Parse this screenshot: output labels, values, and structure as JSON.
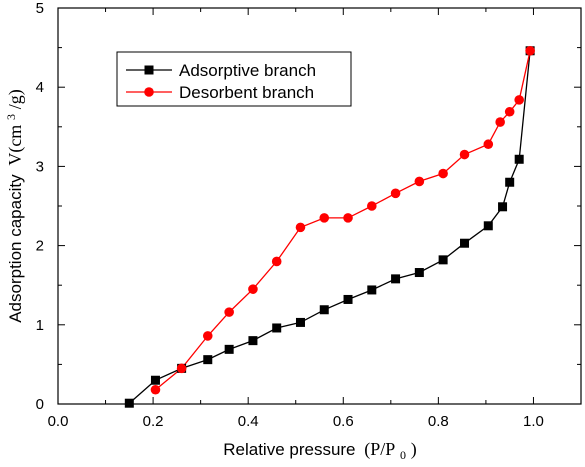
{
  "chart_data": {
    "type": "line",
    "title": "",
    "xlabel_main": "Relative pressure",
    "xlabel_expr": "(P/P",
    "xlabel_sub": "0",
    "xlabel_close": ")",
    "ylabel_main": "Adsorption capacity",
    "ylabel_unit_a": "V(cm",
    "ylabel_sup": "3",
    "ylabel_unit_b": "/g)",
    "xlim": [
      0.0,
      1.1
    ],
    "ylim": [
      0,
      5
    ],
    "xticks": [
      "0.0",
      "0.2",
      "0.4",
      "0.6",
      "0.8",
      "1.0"
    ],
    "yticks": [
      "0",
      "1",
      "2",
      "3",
      "4",
      "5"
    ],
    "legend_position": "top-left",
    "grid": false,
    "series": [
      {
        "name": "Adsorptive branch",
        "color": "#000000",
        "marker": "square",
        "x": [
          0.15,
          0.205,
          0.26,
          0.315,
          0.36,
          0.41,
          0.46,
          0.51,
          0.56,
          0.61,
          0.66,
          0.71,
          0.76,
          0.81,
          0.855,
          0.905,
          0.935,
          0.95,
          0.97,
          0.993
        ],
        "y": [
          0.01,
          0.3,
          0.45,
          0.56,
          0.69,
          0.8,
          0.96,
          1.03,
          1.19,
          1.32,
          1.44,
          1.58,
          1.66,
          1.82,
          2.03,
          2.25,
          2.49,
          2.8,
          3.09,
          4.46
        ]
      },
      {
        "name": "Desorbent branch",
        "color": "#ff0000",
        "marker": "circle",
        "x": [
          0.205,
          0.26,
          0.315,
          0.36,
          0.41,
          0.46,
          0.51,
          0.56,
          0.61,
          0.66,
          0.71,
          0.76,
          0.81,
          0.855,
          0.905,
          0.93,
          0.95,
          0.97,
          0.993
        ],
        "y": [
          0.18,
          0.45,
          0.86,
          1.16,
          1.45,
          1.8,
          2.23,
          2.35,
          2.35,
          2.5,
          2.66,
          2.81,
          2.91,
          3.15,
          3.28,
          3.56,
          3.69,
          3.84,
          4.46
        ]
      }
    ]
  }
}
